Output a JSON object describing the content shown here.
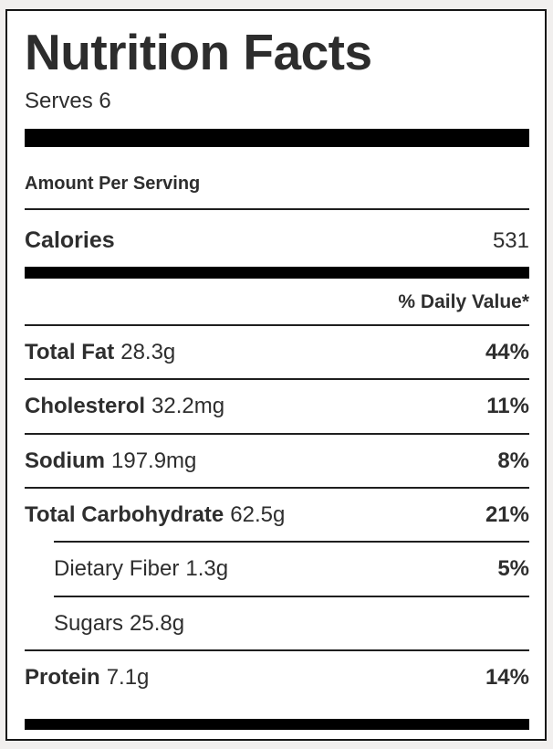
{
  "label": {
    "title": "Nutrition Facts",
    "serves": "Serves 6",
    "amount_per_serving": "Amount Per Serving",
    "calories": {
      "name": "Calories",
      "value": "531"
    },
    "daily_value_header": "% Daily Value*",
    "rows": [
      {
        "name": "Total Fat",
        "amount": "28.3g",
        "percent": "44%",
        "bold": true,
        "indent": false,
        "rule_below": "full"
      },
      {
        "name": "Cholesterol",
        "amount": "32.2mg",
        "percent": "11%",
        "bold": true,
        "indent": false,
        "rule_below": "full"
      },
      {
        "name": "Sodium",
        "amount": "197.9mg",
        "percent": "8%",
        "bold": true,
        "indent": false,
        "rule_below": "full"
      },
      {
        "name": "Total Carbohydrate",
        "amount": "62.5g",
        "percent": "21%",
        "bold": true,
        "indent": false,
        "rule_below": "indent"
      },
      {
        "name": "Dietary Fiber",
        "amount": "1.3g",
        "percent": "5%",
        "bold": false,
        "indent": true,
        "rule_below": "indent"
      },
      {
        "name": "Sugars",
        "amount": "25.8g",
        "percent": "",
        "bold": false,
        "indent": true,
        "rule_below": "full"
      },
      {
        "name": "Protein",
        "amount": "7.1g",
        "percent": "14%",
        "bold": true,
        "indent": false,
        "rule_below": "none"
      }
    ],
    "colors": {
      "text": "#2e2e2e",
      "rule": "#1f1f1f",
      "bar": "#000000",
      "page_background": "#f1efee",
      "label_background": "#ffffff",
      "border": "#151515"
    }
  }
}
